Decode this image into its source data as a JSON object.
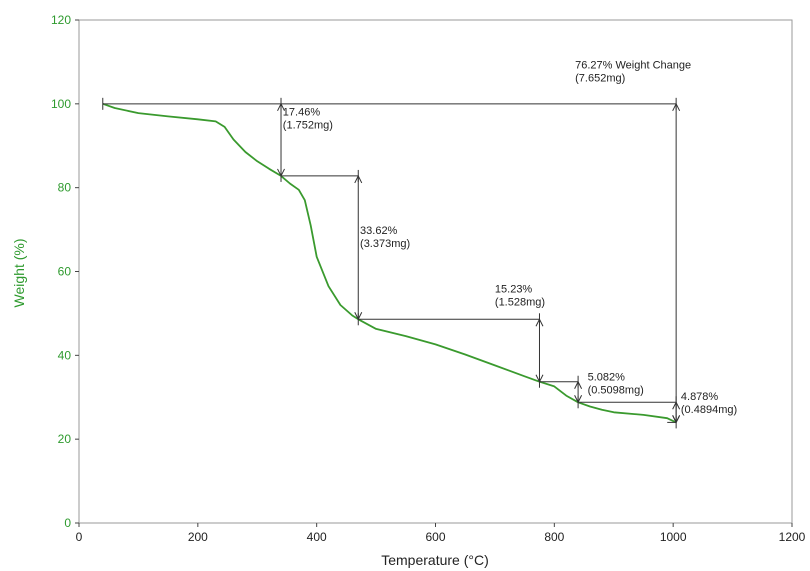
{
  "chart_data": {
    "type": "line",
    "xlabel": "Temperature (°C)",
    "ylabel": "Weight (%)",
    "xlim": [
      0,
      1200
    ],
    "ylim": [
      0,
      120
    ],
    "xticks": [
      0,
      200,
      400,
      600,
      800,
      1000,
      1200
    ],
    "yticks": [
      0,
      20,
      40,
      60,
      80,
      100,
      120
    ],
    "grid": false,
    "colors": {
      "curve": "#3a9a2e",
      "ylabel": "#2e9a2e",
      "annotation": "#333333"
    },
    "series": [
      {
        "x": [
          40,
          60,
          100,
          150,
          200,
          230,
          245,
          260,
          280,
          300,
          320,
          340,
          355,
          370,
          380,
          390,
          400,
          420,
          440,
          460,
          470,
          500,
          550,
          600,
          650,
          700,
          750,
          775,
          800,
          820,
          840,
          860,
          880,
          900,
          950,
          990,
          1005
        ],
        "y": [
          100,
          99.0,
          97.8,
          97.0,
          96.3,
          95.8,
          94.5,
          91.5,
          88.5,
          86.3,
          84.5,
          82.8,
          81.0,
          79.5,
          77.0,
          71.0,
          63.5,
          56.5,
          52.0,
          49.5,
          48.6,
          46.3,
          44.6,
          42.6,
          40.2,
          37.6,
          35.0,
          33.7,
          32.6,
          30.4,
          28.8,
          27.8,
          27.0,
          26.4,
          25.8,
          25.0,
          24.0
        ]
      }
    ],
    "annotations": [
      {
        "line1": "17.46%",
        "line2": "(1.752mg)",
        "x": 340,
        "y_top": 100.0,
        "y_bottom": 82.8
      },
      {
        "line1": "33.62%",
        "line2": "(3.373mg)",
        "x": 470,
        "y_top": 82.8,
        "y_bottom": 48.6
      },
      {
        "line1": "15.23%",
        "line2": "(1.528mg)",
        "x": 775,
        "y_top": 48.6,
        "y_bottom": 33.7
      },
      {
        "line1": "5.082%",
        "line2": "(0.5098mg)",
        "x": 840,
        "y_top": 33.7,
        "y_bottom": 28.8
      },
      {
        "line1": "4.878%",
        "line2": "(0.4894mg)",
        "x": 1005,
        "y_top": 28.8,
        "y_bottom": 24.0
      },
      {
        "line1": "76.27% Weight Change",
        "line2": "(7.652mg)",
        "x": 1005,
        "y_top": 100.0,
        "y_bottom": 24.0
      }
    ]
  }
}
